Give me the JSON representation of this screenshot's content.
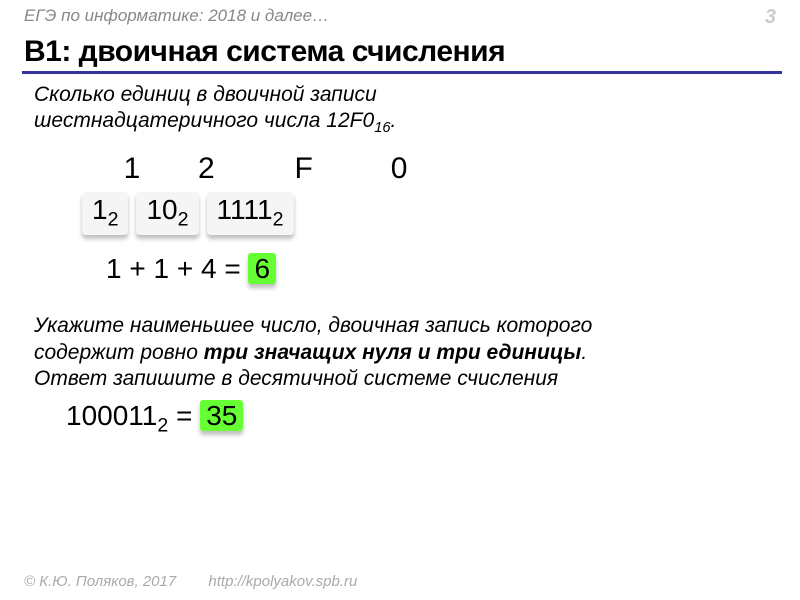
{
  "header": {
    "breadcrumb": "ЕГЭ по информатике: 2018 и далее…",
    "page": "3"
  },
  "title": "B1: двоичная система счисления",
  "colors": {
    "rule": "#333399",
    "header_text": "#888888",
    "page_num": "#cccccc",
    "highlight_bg": "#66ff33",
    "box_bg": "#f5f5f5",
    "footer": "#aaaaaa"
  },
  "problem1": {
    "text_a": "Сколько единиц в двоичной записи",
    "text_b": "шестнадцатеричного числа 12F0",
    "text_b_sub": "16",
    "text_b_tail": ".",
    "hex_digits": [
      "1",
      "2",
      "F",
      "0"
    ],
    "hex_widths": [
      54,
      74,
      100,
      70
    ],
    "bin_boxes": [
      {
        "val": "1",
        "sub": "2"
      },
      {
        "val": "10",
        "sub": "2"
      },
      {
        "val": "1111",
        "sub": "2"
      }
    ],
    "sum_prefix": "1 + 1 + 4 = ",
    "sum_result": "6"
  },
  "problem2": {
    "line1": "Укажите наименьшее число, двоичная запись которого",
    "line2a": "содержит ровно ",
    "line2b_bold": "три значащих нуля и три единицы",
    "line2c": ".",
    "line3": "Ответ запишите в десятичной системе счисления",
    "answer_bin": "100011",
    "answer_sub": "2",
    "answer_eq": " = ",
    "answer_dec": "35"
  },
  "footer": {
    "copyright": "© К.Ю. Поляков, 2017",
    "url": "http://kpolyakov.spb.ru"
  }
}
